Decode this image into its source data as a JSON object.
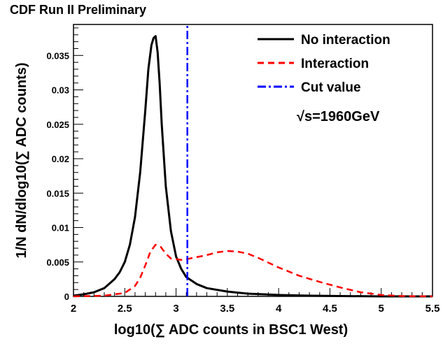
{
  "header_text": "CDF Run II Preliminary",
  "chart_data": {
    "type": "line",
    "xlabel": "log10(∑ ADC counts in BSC1 West)",
    "ylabel": "1/N dN/dlog10(∑ ADC counts)",
    "annotation": "√s=1960GeV",
    "xlim": [
      2,
      5.5
    ],
    "ylim": [
      0,
      0.0395
    ],
    "x_ticks": [
      2,
      2.5,
      3,
      3.5,
      4,
      4.5,
      5,
      5.5
    ],
    "x_tick_labels": [
      "2",
      "2.5",
      "3",
      "3.5",
      "4",
      "4.5",
      "5",
      "5.5"
    ],
    "y_ticks": [
      0,
      0.005,
      0.01,
      0.015,
      0.02,
      0.025,
      0.03,
      0.035
    ],
    "y_tick_labels": [
      "0",
      "0.005",
      "0.01",
      "0.015",
      "0.02",
      "0.025",
      "0.03",
      "0.035"
    ],
    "legend_position": "top-right",
    "series": [
      {
        "name": "No interaction",
        "color": "#000000",
        "style": "solid",
        "x": [
          2.0,
          2.1,
          2.2,
          2.3,
          2.4,
          2.45,
          2.5,
          2.55,
          2.6,
          2.65,
          2.7,
          2.73,
          2.76,
          2.78,
          2.8,
          2.82,
          2.84,
          2.86,
          2.9,
          2.95,
          3.0,
          3.05,
          3.1,
          3.2,
          3.3,
          3.5,
          3.7,
          4.0,
          4.3,
          4.6,
          5.0,
          5.5
        ],
        "y": [
          0.0001,
          0.0003,
          0.0006,
          0.0012,
          0.0025,
          0.0035,
          0.005,
          0.0075,
          0.0115,
          0.018,
          0.027,
          0.033,
          0.0365,
          0.0375,
          0.0378,
          0.0355,
          0.031,
          0.025,
          0.016,
          0.0095,
          0.0058,
          0.004,
          0.0028,
          0.0018,
          0.0012,
          0.0007,
          0.0004,
          0.0002,
          0.0001,
          5e-05,
          0.0,
          0.0
        ]
      },
      {
        "name": "Interaction",
        "color": "#ff0000",
        "style": "dashed",
        "x": [
          2.0,
          2.3,
          2.5,
          2.6,
          2.65,
          2.7,
          2.75,
          2.8,
          2.85,
          2.9,
          2.95,
          3.0,
          3.05,
          3.1,
          3.2,
          3.3,
          3.4,
          3.5,
          3.6,
          3.7,
          3.8,
          3.9,
          4.0,
          4.2,
          4.4,
          4.6,
          4.8,
          5.0,
          5.2,
          5.5
        ],
        "y": [
          0.0,
          0.0001,
          0.0005,
          0.0015,
          0.0027,
          0.0045,
          0.0065,
          0.0075,
          0.0072,
          0.0062,
          0.0055,
          0.0054,
          0.0053,
          0.0054,
          0.0057,
          0.006,
          0.0064,
          0.0066,
          0.0065,
          0.0062,
          0.0056,
          0.0049,
          0.0042,
          0.003,
          0.0021,
          0.0013,
          0.0006,
          0.0002,
          5e-05,
          0.0
        ]
      },
      {
        "name": "Cut value",
        "color": "#0000ff",
        "style": "dashdot",
        "x": [
          3.11,
          3.11
        ],
        "y": [
          0.0,
          0.0395
        ]
      }
    ]
  }
}
